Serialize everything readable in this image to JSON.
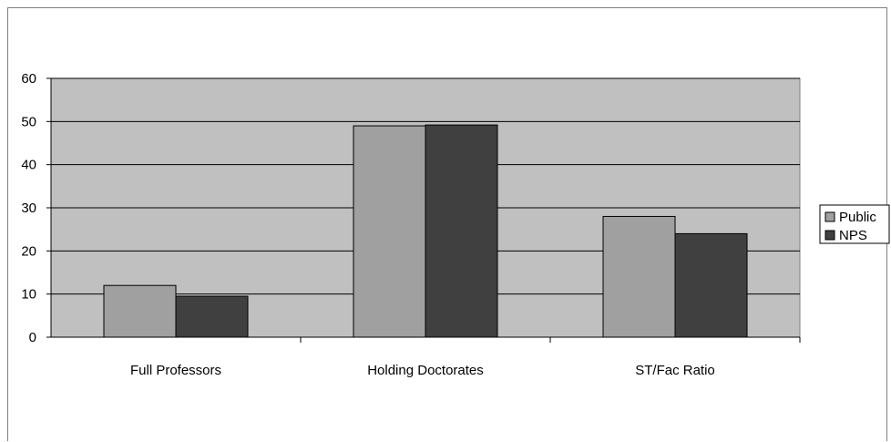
{
  "chart_data": {
    "type": "bar",
    "title": "",
    "xlabel": "",
    "ylabel": "",
    "categories": [
      "Full Professors",
      "Holding Doctorates",
      "ST/Fac Ratio"
    ],
    "series": [
      {
        "name": "Public",
        "values": [
          12,
          49,
          28
        ],
        "color": "#a0a0a0"
      },
      {
        "name": "NPS",
        "values": [
          9.5,
          49.2,
          24
        ],
        "color": "#404040"
      }
    ],
    "ylim": [
      0,
      60
    ],
    "yticks": [
      0,
      10,
      20,
      30,
      40,
      50,
      60
    ],
    "grid": true,
    "plot_background": "#c0c0c0",
    "legend_position": "right"
  }
}
